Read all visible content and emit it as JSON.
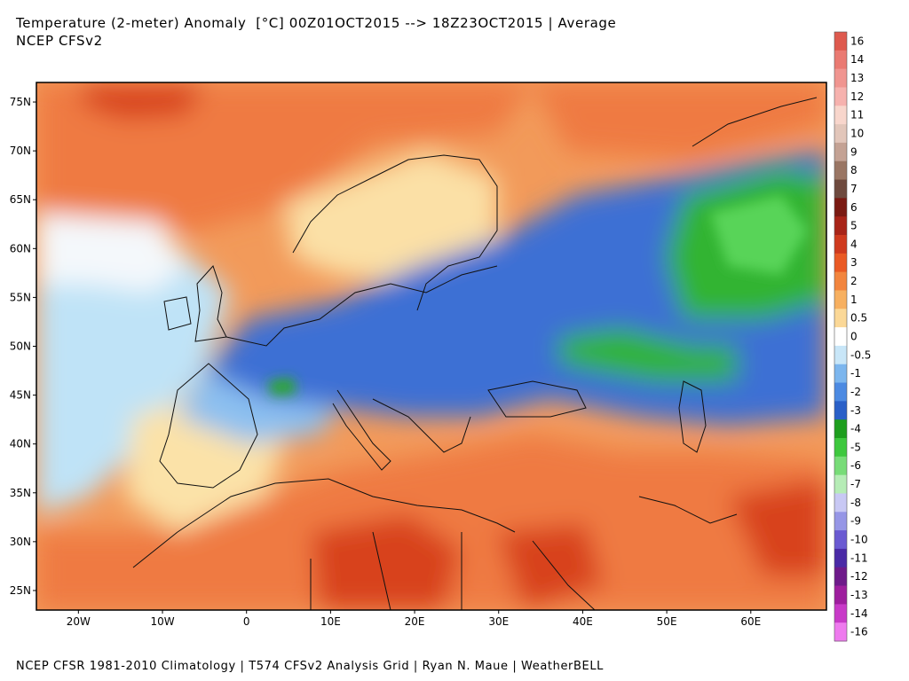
{
  "header": {
    "title": "Temperature (2-meter) Anomaly  [°C] 00Z01OCT2015 --> 18Z23OCT2015 | Average",
    "subtitle": "NCEP CFSv2"
  },
  "footer": {
    "credits": "NCEP CFSR 1981-2010 Climatology | T574 CFSv2 Analysis Grid | Ryan N. Maue | WeatherBELL"
  },
  "map": {
    "lon_range": [
      -25,
      69
    ],
    "lat_range": [
      23,
      77
    ],
    "lat_ticks": [
      {
        "value": 75,
        "label": "75N"
      },
      {
        "value": 70,
        "label": "70N"
      },
      {
        "value": 65,
        "label": "65N"
      },
      {
        "value": 60,
        "label": "60N"
      },
      {
        "value": 55,
        "label": "55N"
      },
      {
        "value": 50,
        "label": "50N"
      },
      {
        "value": 45,
        "label": "45N"
      },
      {
        "value": 40,
        "label": "40N"
      },
      {
        "value": 35,
        "label": "35N"
      },
      {
        "value": 30,
        "label": "30N"
      },
      {
        "value": 25,
        "label": "25N"
      }
    ],
    "lon_ticks": [
      {
        "value": -20,
        "label": "20W"
      },
      {
        "value": -10,
        "label": "10W"
      },
      {
        "value": 0,
        "label": "0"
      },
      {
        "value": 10,
        "label": "10E"
      },
      {
        "value": 20,
        "label": "20E"
      },
      {
        "value": 30,
        "label": "30E"
      },
      {
        "value": 40,
        "label": "40E"
      },
      {
        "value": 50,
        "label": "50E"
      },
      {
        "value": 60,
        "label": "60E"
      }
    ],
    "base_color": "#f29a5a",
    "anomaly_regions": [
      {
        "kind": "cold-pool",
        "color": "#3e6fd4",
        "approx_value": -2
      },
      {
        "kind": "strong-cold",
        "color": "#32b432",
        "approx_value": -4
      },
      {
        "kind": "warm-north-atlantic",
        "color": "#ef7a42",
        "approx_value": 3
      },
      {
        "kind": "warm-saharan",
        "color": "#e05a2e",
        "approx_value": 4
      },
      {
        "kind": "neutral-atlantic",
        "color": "#bfe3f7",
        "approx_value": -0.5
      }
    ]
  },
  "colorbar": {
    "labels": [
      "16",
      "14",
      "13",
      "12",
      "11",
      "10",
      "9",
      "8",
      "7",
      "6",
      "5",
      "4",
      "3",
      "2",
      "1",
      "0.5",
      "0",
      "-0.5",
      "-1",
      "-2",
      "-3",
      "-4",
      "-5",
      "-6",
      "-7",
      "-8",
      "-9",
      "-10",
      "-11",
      "-12",
      "-13",
      "-14",
      "-16"
    ],
    "colors": [
      "#de5a4e",
      "#ea7a72",
      "#f09590",
      "#f6b2ae",
      "#f8d6cc",
      "#e2c6ba",
      "#c4a294",
      "#9a7664",
      "#6e4a3e",
      "#7a1a12",
      "#a82418",
      "#cf3a1e",
      "#ea5a24",
      "#f2853e",
      "#f7b060",
      "#fbd897",
      "#ffffff",
      "#c8e6f8",
      "#7cb6ee",
      "#4c8ae2",
      "#2a60c8",
      "#1e9e1e",
      "#3ec83e",
      "#78dc78",
      "#b6ecb6",
      "#c8c8f4",
      "#9696e6",
      "#6a5ad2",
      "#4a2aa6",
      "#6e1a8a",
      "#9e1e9e",
      "#c83ac8",
      "#ee7aee"
    ]
  }
}
